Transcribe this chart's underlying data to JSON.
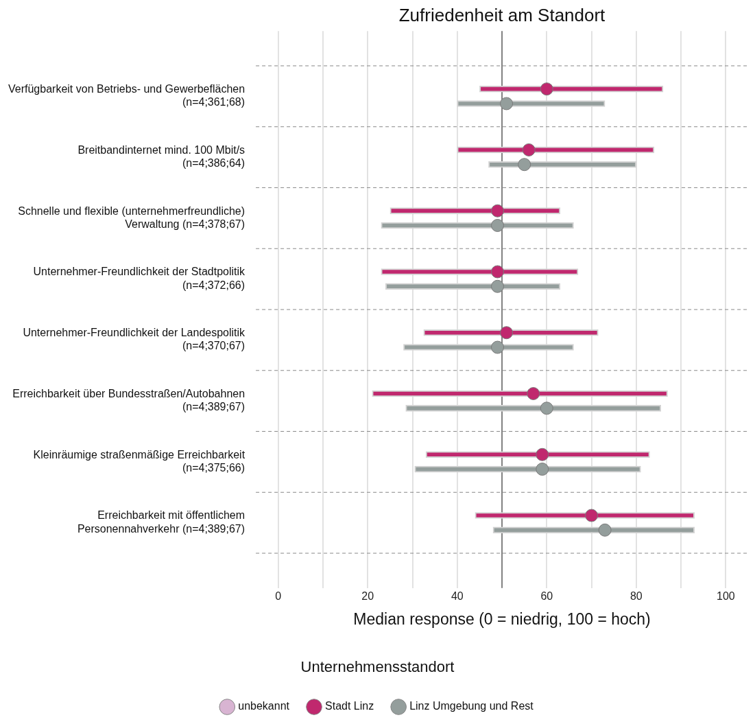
{
  "chart_data": {
    "type": "bar",
    "orientation": "horizontal",
    "title": "Zufriedenheit am Standort",
    "xlabel": "Median response (0 = niedrig, 100 = hoch)",
    "legend_title": "Unternehmensstandort",
    "legend": "bottom",
    "marker": "circle",
    "grid": true,
    "categories": [
      "Verfügbarkeit von Betriebs- und Gewerbeflächen (n=4;361;68)",
      "Breitbandinternet mind. 100 Mbit/s (n=4;386;64)",
      "Schnelle und flexible (unternehmerfreundliche) Verwaltung (n=4;378;67)",
      "Unternehmer-Freundlichkeit der Stadtpolitik (n=4;372;66)",
      "Unternehmer-Freundlichkeit der Landespolitik (n=4;370;67)",
      "Erreichbarkeit über Bundesstraßen/Autobahnen (n=4;389;67)",
      "Kleinräumige straßenmäßige Erreichbarkeit (n=4;375;66)",
      "Erreichbarkeit mit öffentlichem Personennahverkehr (n=4;389;67)"
    ],
    "xlim": [
      -5,
      105
    ],
    "xticks": [
      0,
      {
        "value": 10,
        "label": null
      },
      20,
      {
        "value": 30,
        "label": null
      },
      40,
      {
        "value": 50,
        "label": null
      },
      60,
      {
        "value": 70,
        "label": null
      },
      80,
      {
        "value": 90,
        "label": null
      },
      100
    ],
    "ref_lines": [
      {
        "axis": "x",
        "value": 50,
        "color": "#808080"
      }
    ],
    "series": [
      {
        "name": "unbekannt",
        "type": "scatter",
        "color": "#d8b4d2",
        "values": [
          null,
          null,
          null,
          null,
          null,
          null,
          null,
          null
        ]
      },
      {
        "type": "bar",
        "color": "#c0286e",
        "base": [
          45,
          40,
          25,
          23,
          32.5,
          21,
          33,
          44
        ],
        "values": [
          41,
          44,
          38,
          44,
          39,
          66,
          50,
          49
        ]
      },
      {
        "type": "bar",
        "color": "#949e9c",
        "base": [
          40,
          47,
          23,
          24,
          28,
          28.5,
          30.5,
          48
        ],
        "values": [
          33,
          33,
          43,
          39,
          38,
          57,
          50.5,
          45
        ]
      },
      {
        "name": "Stadt Linz",
        "type": "scatter",
        "color": "#c0286e",
        "values": [
          60,
          56,
          49,
          49,
          51,
          57,
          59,
          70
        ]
      },
      {
        "name": "Linz Umgebung und Rest",
        "type": "scatter",
        "color": "#949e9c",
        "values": [
          51,
          55,
          49,
          49,
          49,
          60,
          59,
          73
        ]
      }
    ]
  }
}
